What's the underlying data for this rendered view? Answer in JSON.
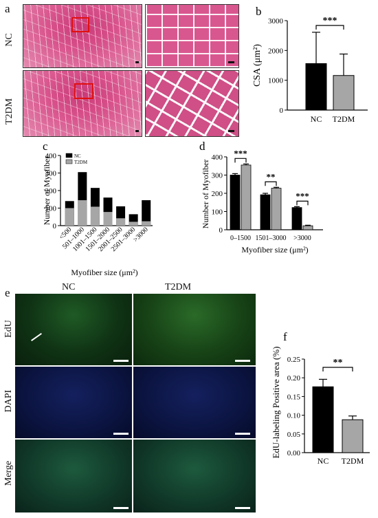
{
  "panel_a": {
    "letter": "a",
    "rows": [
      "NC",
      "T2DM"
    ]
  },
  "panel_e": {
    "letter": "e",
    "columns": [
      "NC",
      "T2DM"
    ],
    "rows": [
      "EdU",
      "DAPI",
      "Merge"
    ]
  },
  "colors": {
    "nc": "#000000",
    "t2dm": "#a6a6a6",
    "he_pink": "#d9578f",
    "edu_green": "#1f5a25",
    "dapi_blue": "#14205e"
  },
  "chart_data": [
    {
      "id": "b",
      "type": "bar",
      "letter": "b",
      "categories": [
        "NC",
        "T2DM"
      ],
      "values": [
        1560,
        1160
      ],
      "errors": [
        1050,
        720
      ],
      "ylabel": "CSA (μm²)",
      "ylim": [
        0,
        3000
      ],
      "yticks": [
        "0",
        "1000",
        "2000",
        "3000"
      ],
      "significance": "***"
    },
    {
      "id": "c",
      "type": "bar",
      "letter": "c",
      "stacked": true,
      "categories": [
        "<500",
        "501–1000",
        "1001–1500",
        "1501–2000",
        "2001–2500",
        "2501–3000",
        ">3000"
      ],
      "series": [
        {
          "name": "NC",
          "values": [
            140,
            305,
            215,
            160,
            110,
            65,
            145
          ]
        },
        {
          "name": "T2DM",
          "values": [
            100,
            145,
            108,
            78,
            42,
            22,
            25
          ]
        }
      ],
      "xlabel": "Myofiber size (μm²)",
      "ylabel": "Number of Myofiber",
      "ylim": [
        0,
        400
      ],
      "yticks": [
        "0",
        "100",
        "200",
        "300",
        "400"
      ],
      "legend": "top-left"
    },
    {
      "id": "d",
      "type": "bar",
      "letter": "d",
      "categories": [
        "0–1500",
        "1501–3000",
        ">3000"
      ],
      "series": [
        {
          "name": "NC",
          "values": [
            300,
            192,
            122
          ],
          "errors": [
            8,
            8,
            5
          ]
        },
        {
          "name": "T2DM",
          "values": [
            355,
            228,
            22
          ],
          "errors": [
            6,
            5,
            3
          ]
        }
      ],
      "significance": [
        "***",
        "**",
        "***"
      ],
      "xlabel": "Myofiber size (μm²)",
      "ylabel": "Number of Myofiber",
      "ylim": [
        0,
        400
      ],
      "yticks": [
        "0",
        "100",
        "200",
        "300",
        "400"
      ]
    },
    {
      "id": "f",
      "type": "bar",
      "letter": "f",
      "categories": [
        "NC",
        "T2DM"
      ],
      "values": [
        0.176,
        0.088
      ],
      "errors": [
        0.02,
        0.01
      ],
      "ylabel": "EdU-labeling Positive area (%)",
      "ylim": [
        0,
        0.25
      ],
      "yticks": [
        "0.00",
        "0.05",
        "0.10",
        "0.15",
        "0.20",
        "0.25"
      ],
      "significance": "**"
    }
  ]
}
